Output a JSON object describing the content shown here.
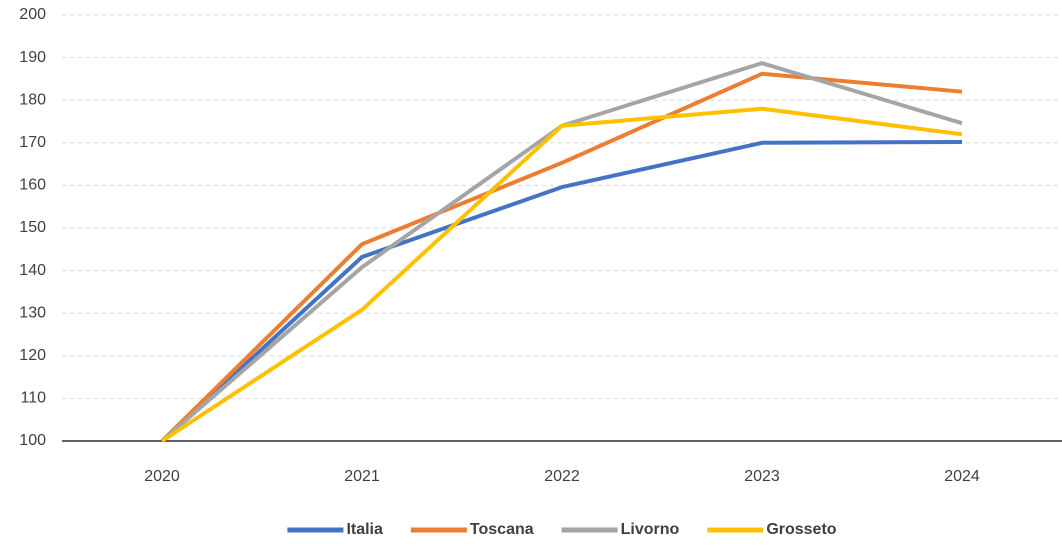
{
  "chart_data": {
    "type": "line",
    "categories": [
      "2020",
      "2021",
      "2022",
      "2023",
      "2024"
    ],
    "series": [
      {
        "name": "Italia",
        "color": "#4472c4",
        "values": [
          100,
          143.2,
          159.6,
          170,
          170.2
        ]
      },
      {
        "name": "Toscana",
        "color": "#ed7d31",
        "values": [
          100,
          146.2,
          165.3,
          186.2,
          182
        ]
      },
      {
        "name": "Livorno",
        "color": "#a5a5a5",
        "values": [
          100,
          140.8,
          174,
          188.7,
          174.6
        ]
      },
      {
        "name": "Grosseto",
        "color": "#ffc000",
        "values": [
          100,
          130.8,
          174,
          178,
          172
        ]
      }
    ],
    "ylim": [
      100,
      200
    ],
    "yticks": [
      100,
      110,
      120,
      130,
      140,
      150,
      160,
      170,
      180,
      190,
      200
    ],
    "grid": true,
    "legend": "bottom"
  }
}
